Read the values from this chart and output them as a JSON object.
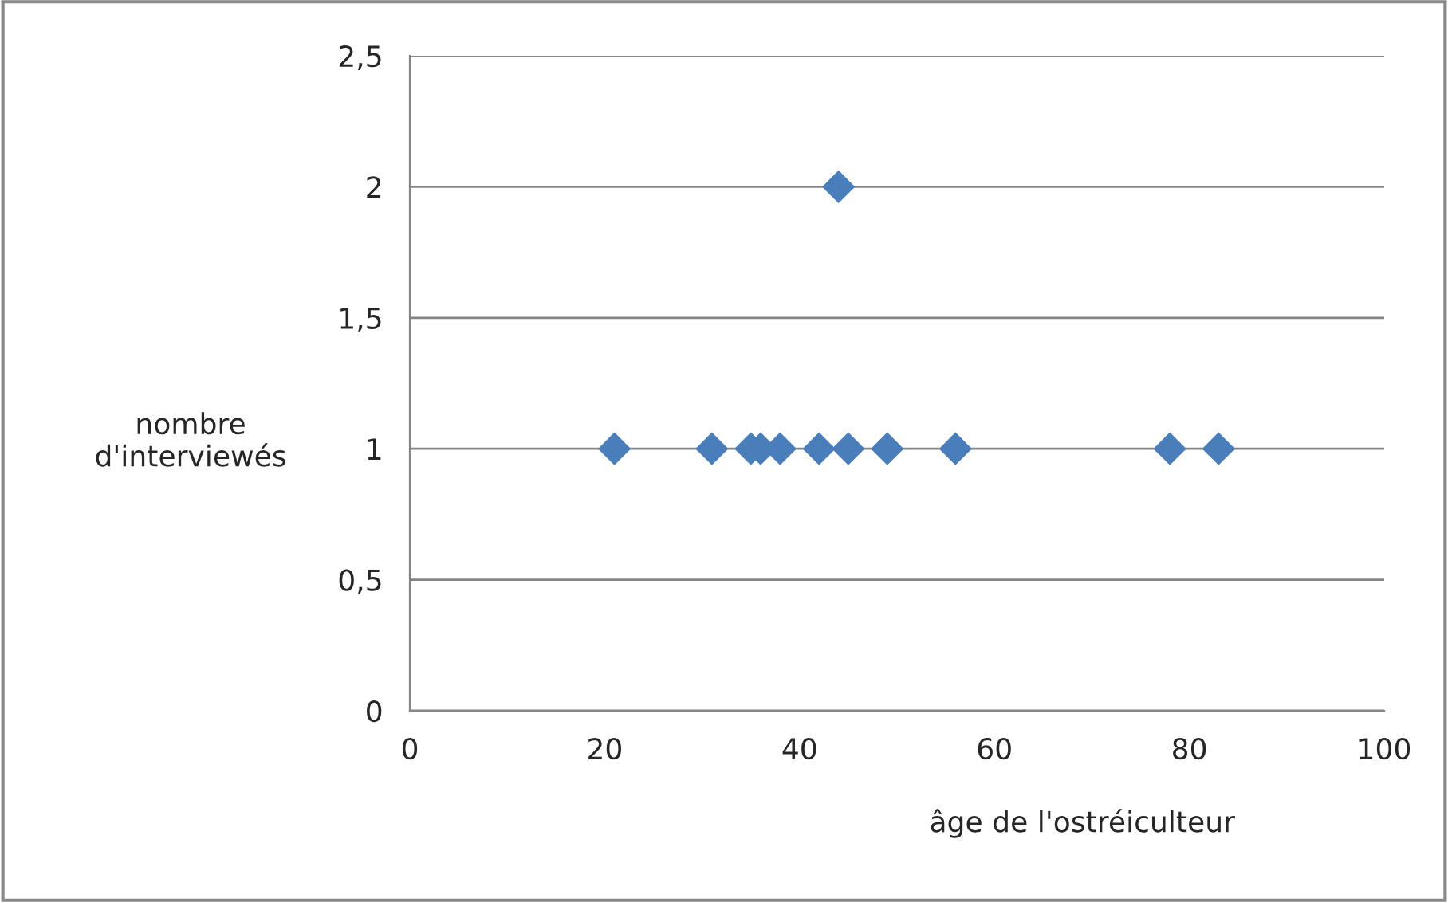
{
  "chart_data": {
    "type": "scatter",
    "xlabel": "âge de l'ostréiculteur",
    "ylabel": "nombre\nd'interviewés",
    "x": [
      21,
      31,
      35,
      36,
      38,
      42,
      44,
      45,
      49,
      56,
      78,
      83
    ],
    "series": [
      {
        "color": "#4a7ebb",
        "values": [
          1,
          1,
          1,
          1,
          1,
          1,
          2,
          1,
          1,
          1,
          1,
          1
        ]
      }
    ],
    "xlim": [
      0,
      100
    ],
    "xticks": [
      0,
      20,
      40,
      60,
      80,
      100
    ],
    "ylim": [
      0,
      2.5
    ],
    "yticks": [
      0,
      {
        "value": 0.5,
        "label": "0,5"
      },
      1,
      {
        "value": 1.5,
        "label": "1,5"
      },
      2,
      {
        "value": 2.5,
        "label": "2,5"
      }
    ],
    "grid": "y",
    "marker": "diamond",
    "legend": false
  }
}
